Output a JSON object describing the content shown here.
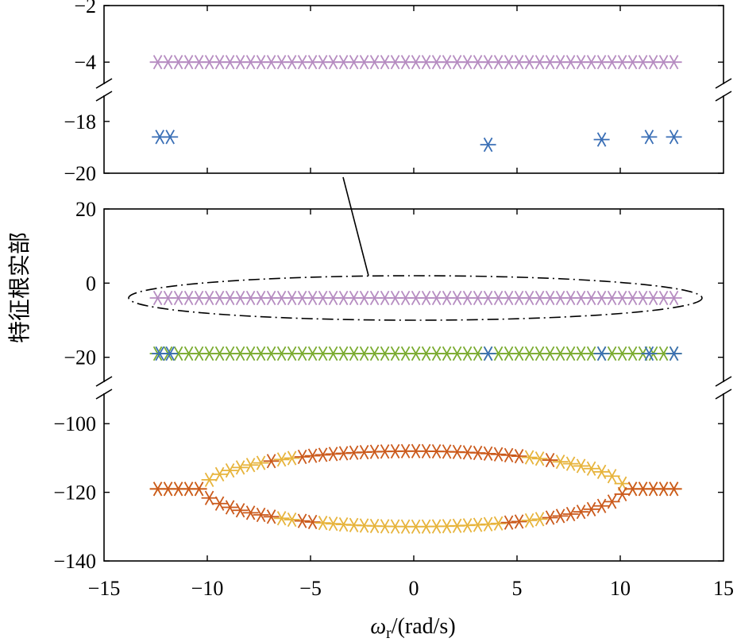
{
  "chart_data": {
    "type": "scatter",
    "marker": "asterisk",
    "ylabel": "特征根实部",
    "xlabel_symbol": "ω",
    "xlabel_subscript": "r",
    "xlabel_unit": "/(rad/s)",
    "xlim": [
      -15,
      15
    ],
    "x_ticks": [
      "−15",
      "−10",
      "−5",
      "0",
      "5",
      "10",
      "15"
    ],
    "x": [
      -12.4,
      -11.9,
      -11.4,
      -10.9,
      -10.4,
      -9.9,
      -9.4,
      -8.9,
      -8.4,
      -7.9,
      -7.4,
      -6.9,
      -6.4,
      -5.9,
      -5.4,
      -4.9,
      -4.4,
      -3.9,
      -3.4,
      -2.9,
      -2.4,
      -1.9,
      -1.4,
      -0.9,
      -0.4,
      0.1,
      0.6,
      1.1,
      1.6,
      2.1,
      2.6,
      3.1,
      3.6,
      4.1,
      4.6,
      5.1,
      5.6,
      6.1,
      6.6,
      7.1,
      7.6,
      8.1,
      8.6,
      9.1,
      9.6,
      10.1,
      10.6,
      11.1,
      11.6,
      12.1,
      12.6
    ],
    "colors": {
      "purple": "#b68cc1",
      "blue": "#3a6fb6",
      "green": "#7aab2f",
      "orange": "#cb5a1c",
      "yellow": "#e7b43c"
    },
    "top_panel": {
      "segments": [
        {
          "ylim": [
            -4.5,
            -2
          ],
          "ticks": [
            "−2",
            "−4"
          ]
        },
        {
          "ylim": [
            -20,
            -17.3
          ],
          "ticks": [
            "−18",
            "−20"
          ]
        }
      ],
      "series": [
        {
          "name": "mode-purple",
          "color_key": "purple",
          "points": "all",
          "y": -4
        },
        {
          "name": "mode-blue",
          "color_key": "blue",
          "x": [
            -12.3,
            -11.8,
            3.6,
            9.1,
            11.4,
            12.6
          ],
          "y": [
            -18.6,
            -18.6,
            -18.9,
            -18.7,
            -18.6,
            -18.6
          ]
        }
      ]
    },
    "bottom_panel": {
      "segments": [
        {
          "ylim": [
            -25,
            20
          ],
          "ticks": [
            "20",
            "0",
            "−20"
          ]
        },
        {
          "ylim": [
            -140,
            -93
          ],
          "ticks": [
            "−100",
            "−120",
            "−140"
          ]
        }
      ],
      "series": [
        {
          "name": "mode-purple",
          "color_key": "purple",
          "points": "all",
          "y": -4
        },
        {
          "name": "mode-green",
          "color_key": "green",
          "points": "all",
          "y": -19
        },
        {
          "name": "mode-blue",
          "color_key": "blue",
          "x": [
            -12.3,
            -11.8,
            3.6,
            9.1,
            11.4,
            12.6
          ],
          "y": [
            -19,
            -19,
            -19,
            -19,
            -19,
            -19
          ]
        },
        {
          "name": "mode-upper-branch",
          "kind": "split",
          "y_outer": -119,
          "y_center": -108,
          "x_split": 10.2,
          "colors_by_x": [
            {
              "max_abs_x": 5.4,
              "color_key": "orange"
            },
            {
              "max_abs_x": 6.4,
              "color_key": "yellow"
            },
            {
              "max_abs_x": 6.9,
              "color_key": "orange"
            },
            {
              "max_abs_x": 12.6,
              "color_key": "yellow"
            }
          ]
        },
        {
          "name": "mode-lower-branch",
          "kind": "split",
          "y_outer": -119,
          "y_center": -130,
          "x_split": 10.2,
          "colors_by_x": [
            {
              "max_abs_x": 4.4,
              "color_key": "yellow"
            },
            {
              "max_abs_x": 5.4,
              "color_key": "orange"
            },
            {
              "max_abs_x": 6.4,
              "color_key": "yellow"
            },
            {
              "max_abs_x": 12.6,
              "color_key": "orange"
            }
          ]
        }
      ]
    },
    "annotation": "ellipse around the -4 series with a leader line to the top panel"
  }
}
